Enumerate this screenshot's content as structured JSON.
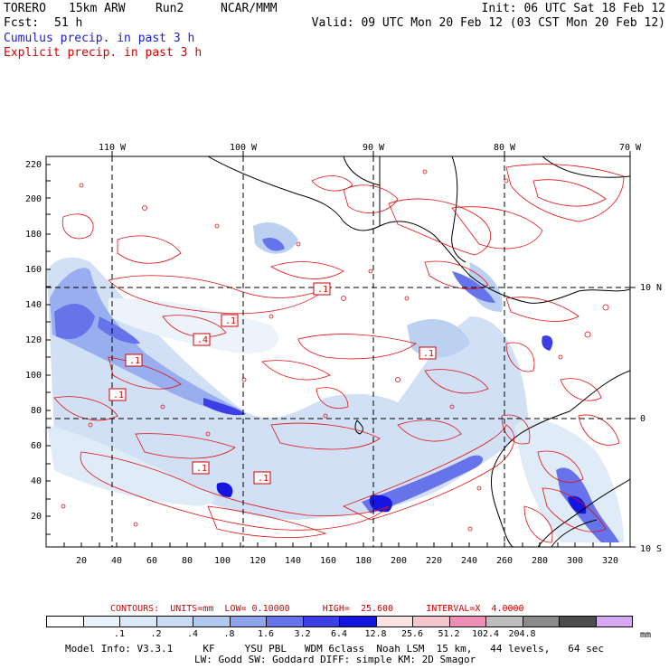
{
  "header": {
    "model": "TORERO",
    "grid": "15km ARW",
    "run": "Run2",
    "org": "NCAR/MMM",
    "init": "Init: 06 UTC Sat 18 Feb 12",
    "fcst_label": "Fcst:",
    "fcst_value": "51 h",
    "valid": "Valid: 09 UTC Mon 20 Feb 12 (03 CST Mon 20 Feb 12)",
    "field1": "Cumulus precip. in past 3 h",
    "field2": "Explicit precip. in past 3 h"
  },
  "colors": {
    "field1_color": "#1c1cd8",
    "field2_color": "#d40000",
    "contour_color": "#e01010"
  },
  "map": {
    "lon_labels": [
      "110 W",
      "100 W",
      "90 W",
      "80 W",
      "70 W"
    ],
    "lat_labels": [
      "10 N",
      "0",
      "10 S"
    ],
    "y_ticks": [
      "220",
      "200",
      "180",
      "160",
      "140",
      "120",
      "100",
      "80",
      "60",
      "40",
      "20"
    ],
    "x_ticks": [
      "20",
      "40",
      "60",
      "80",
      "100",
      "120",
      "140",
      "160",
      "180",
      "200",
      "220",
      "240",
      "260",
      "280",
      "300",
      "320"
    ],
    "contour_labels": [
      ".1",
      ".1",
      ".4",
      ".1",
      ".1",
      ".1",
      ".1",
      ".1"
    ]
  },
  "contours_info": {
    "text": "CONTOURS:  UNITS=mm  LOW= 0.10000      HIGH=  25.600      INTERVAL=X  4.0000"
  },
  "legend": {
    "unit": "mm",
    "colors": [
      "#ffffff",
      "#eaf2fb",
      "#dbe8f7",
      "#c9dbf3",
      "#b1c9ef",
      "#8ea4ec",
      "#6673ea",
      "#3d3fe6",
      "#1515e0",
      "#fbe3e3",
      "#f6c6cf",
      "#ee8db5",
      "#bdbdbd",
      "#8a8a8a",
      "#4d4d4d",
      "#d7a8f2"
    ],
    "labels": [
      ".1",
      ".2",
      ".4",
      ".8",
      "1.6",
      "3.2",
      "6.4",
      "12.8",
      "25.6",
      "51.2",
      "102.4",
      "204.8"
    ]
  },
  "footer": {
    "line1": "Model Info: V3.3.1     KF     YSU PBL   WDM 6class  Noah LSM  15 km,   44 levels,   64 sec",
    "line2": "LW: Godd SW: Goddard DIFF: simple KM: 2D Smagor"
  }
}
